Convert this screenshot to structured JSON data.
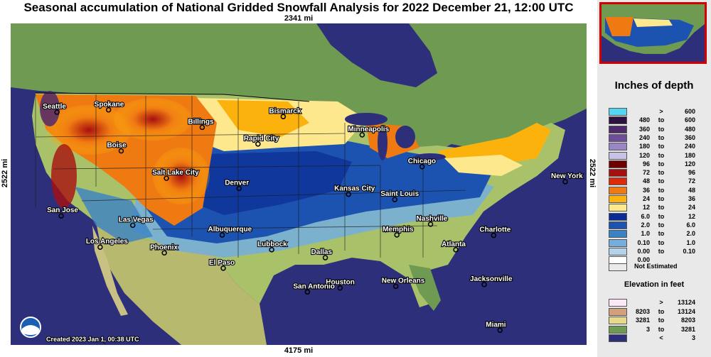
{
  "title": "Seasonal accumulation of National Gridded Snowfall Analysis for 2022 December 21, 12:00 UTC",
  "distances": {
    "top": "2341 mi",
    "bottom": "4175 mi",
    "left": "2522 mi",
    "right": "2522 mi"
  },
  "created": "Created 2023 Jan 1, 00:38 UTC",
  "legend": {
    "title": "Inches of depth",
    "rows": [
      {
        "lo": "",
        "sep": ">",
        "hi": "600",
        "color": "#52d6f4"
      },
      {
        "lo": "480",
        "sep": "to",
        "hi": "600",
        "color": "#2c1240"
      },
      {
        "lo": "360",
        "sep": "to",
        "hi": "480",
        "color": "#4e2a6c"
      },
      {
        "lo": "240",
        "sep": "to",
        "hi": "360",
        "color": "#6e4d98"
      },
      {
        "lo": "180",
        "sep": "to",
        "hi": "240",
        "color": "#9a86c4"
      },
      {
        "lo": "120",
        "sep": "to",
        "hi": "180",
        "color": "#c8c2e6"
      },
      {
        "lo": "96",
        "sep": "to",
        "hi": "120",
        "color": "#6e0000"
      },
      {
        "lo": "72",
        "sep": "to",
        "hi": "96",
        "color": "#a80f0f"
      },
      {
        "lo": "48",
        "sep": "to",
        "hi": "72",
        "color": "#dc2a0a"
      },
      {
        "lo": "36",
        "sep": "to",
        "hi": "48",
        "color": "#f07a12"
      },
      {
        "lo": "24",
        "sep": "to",
        "hi": "36",
        "color": "#fbb20c"
      },
      {
        "lo": "12",
        "sep": "to",
        "hi": "24",
        "color": "#fde88e"
      },
      {
        "lo": "6.0",
        "sep": "to",
        "hi": "12",
        "color": "#0a2c94"
      },
      {
        "lo": "2.0",
        "sep": "to",
        "hi": "6.0",
        "color": "#1c52b0"
      },
      {
        "lo": "1.0",
        "sep": "to",
        "hi": "2.0",
        "color": "#3a82c6"
      },
      {
        "lo": "0.10",
        "sep": "to",
        "hi": "1.0",
        "color": "#74aede"
      },
      {
        "lo": "0.00",
        "sep": "to",
        "hi": "0.10",
        "color": "#b4d2ec"
      },
      {
        "lo": "0.00",
        "sep": "",
        "hi": "",
        "color": "#ffffff"
      }
    ],
    "not_estimated": "Not Estimated",
    "not_estimated_color": "#eaeaea"
  },
  "elevation": {
    "title": "Elevation in feet",
    "rows": [
      {
        "lo": "",
        "sep": ">",
        "hi": "13124",
        "color": "#fbe8f4"
      },
      {
        "lo": "8203",
        "sep": "to",
        "hi": "13124",
        "color": "#d4a07a"
      },
      {
        "lo": "3281",
        "sep": "to",
        "hi": "8203",
        "color": "#e8d88a"
      },
      {
        "lo": "3",
        "sep": "to",
        "hi": "3281",
        "color": "#6e9c52"
      },
      {
        "lo": "",
        "sep": "<",
        "hi": "3",
        "color": "#2e2f7a"
      }
    ]
  },
  "cities": [
    {
      "name": "Seattle",
      "lon": -122.3,
      "lat": 47.6
    },
    {
      "name": "Spokane",
      "lon": -117.4,
      "lat": 47.7
    },
    {
      "name": "Boise",
      "lon": -116.2,
      "lat": 43.6
    },
    {
      "name": "Billings",
      "lon": -108.5,
      "lat": 45.8
    },
    {
      "name": "Bismarck",
      "lon": -100.8,
      "lat": 46.8
    },
    {
      "name": "Rapid City",
      "lon": -103.2,
      "lat": 44.1
    },
    {
      "name": "Minneapolis",
      "lon": -93.3,
      "lat": 45.0
    },
    {
      "name": "Chicago",
      "lon": -87.6,
      "lat": 41.9
    },
    {
      "name": "New York",
      "lon": -74.0,
      "lat": 40.7
    },
    {
      "name": "Salt Lake City",
      "lon": -111.9,
      "lat": 40.8
    },
    {
      "name": "Denver",
      "lon": -105.0,
      "lat": 39.7
    },
    {
      "name": "Kansas City",
      "lon": -94.6,
      "lat": 39.1
    },
    {
      "name": "Saint Louis",
      "lon": -90.2,
      "lat": 38.6
    },
    {
      "name": "San Jose",
      "lon": -121.9,
      "lat": 37.3
    },
    {
      "name": "Las Vegas",
      "lon": -115.1,
      "lat": 36.2
    },
    {
      "name": "Nashville",
      "lon": -86.8,
      "lat": 36.2
    },
    {
      "name": "Memphis",
      "lon": -90.0,
      "lat": 35.1
    },
    {
      "name": "Charlotte",
      "lon": -80.8,
      "lat": 35.2
    },
    {
      "name": "Albuquerque",
      "lon": -106.6,
      "lat": 35.1
    },
    {
      "name": "Phoenix",
      "lon": -112.1,
      "lat": 33.4
    },
    {
      "name": "Los Angeles",
      "lon": -118.2,
      "lat": 34.1
    },
    {
      "name": "Lubbock",
      "lon": -101.9,
      "lat": 33.6
    },
    {
      "name": "Dallas",
      "lon": -96.8,
      "lat": 32.8
    },
    {
      "name": "Atlanta",
      "lon": -84.4,
      "lat": 33.7
    },
    {
      "name": "El Paso",
      "lon": -106.5,
      "lat": 31.8
    },
    {
      "name": "Jacksonville",
      "lon": -81.7,
      "lat": 30.3
    },
    {
      "name": "New Orleans",
      "lon": -90.1,
      "lat": 30.0
    },
    {
      "name": "Houston",
      "lon": -95.4,
      "lat": 29.8
    },
    {
      "name": "San Antonio",
      "lon": -98.5,
      "lat": 29.4
    },
    {
      "name": "Miami",
      "lon": -80.2,
      "lat": 25.8
    }
  ]
}
